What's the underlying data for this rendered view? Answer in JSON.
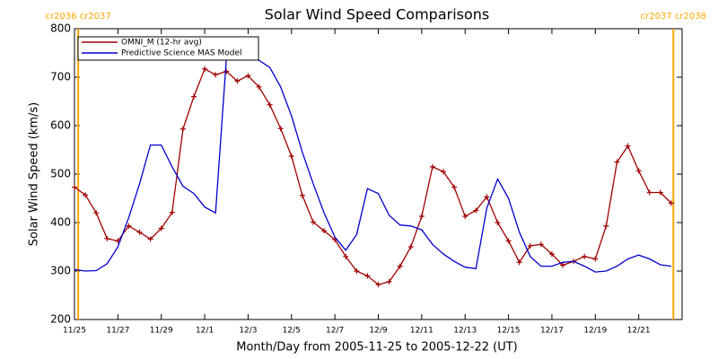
{
  "chart_data": {
    "type": "line",
    "title": "Solar Wind Speed Comparisons",
    "xlabel": "Month/Day from 2005-11-25 to 2005-12-22 (UT)",
    "ylabel": "Solar Wind Speed (km/s)",
    "x": [
      0,
      0.5,
      1,
      1.5,
      2,
      2.5,
      3,
      3.5,
      4,
      4.5,
      5,
      5.5,
      6,
      6.5,
      7,
      7.5,
      8,
      8.5,
      9,
      9.5,
      10,
      10.5,
      11,
      11.5,
      12,
      12.5,
      13,
      13.5,
      14,
      14.5,
      15,
      15.5,
      16,
      16.5,
      17,
      17.5,
      18,
      18.5,
      19,
      19.5,
      20,
      20.5,
      21,
      21.5,
      22,
      22.5,
      23,
      23.5,
      24,
      24.5,
      25,
      25.5,
      26,
      26.5,
      27,
      27.5
    ],
    "series": [
      {
        "name": "OMNI_M (12-hr avg)",
        "color": "#a00000",
        "marker": "+",
        "values": [
          473,
          457,
          420,
          367,
          362,
          393,
          380,
          366,
          388,
          421,
          593,
          660,
          717,
          705,
          712,
          692,
          703,
          680,
          643,
          594,
          537,
          456,
          401,
          383,
          365,
          330,
          300,
          290,
          272,
          278,
          310,
          350,
          413,
          515,
          505,
          473,
          413,
          425,
          453,
          400,
          362,
          318,
          352,
          355,
          335,
          312,
          320,
          330,
          325,
          393,
          525,
          558,
          507,
          462,
          462,
          440
        ]
      },
      {
        "name": "Predictive Science MAS Model",
        "color": "#0000cc",
        "values": [
          303,
          300,
          301,
          315,
          350,
          410,
          480,
          560,
          560,
          515,
          475,
          460,
          432,
          420,
          740,
          742,
          740,
          735,
          720,
          680,
          620,
          545,
          480,
          420,
          370,
          343,
          375,
          470,
          460,
          415,
          395,
          393,
          385,
          355,
          335,
          320,
          308,
          305,
          430,
          490,
          450,
          380,
          330,
          310,
          310,
          318,
          320,
          310,
          298,
          300,
          310,
          325,
          333,
          325,
          313,
          310
        ]
      }
    ],
    "xlim": [
      0,
      28
    ],
    "xticks": [
      {
        "value": 0,
        "label": "11/25"
      },
      {
        "value": 2,
        "label": "11/27"
      },
      {
        "value": 4,
        "label": "11/29"
      },
      {
        "value": 6,
        "label": "12/1"
      },
      {
        "value": 8,
        "label": "12/3"
      },
      {
        "value": 10,
        "label": "12/5"
      },
      {
        "value": 12,
        "label": "12/7"
      },
      {
        "value": 14,
        "label": "12/9"
      },
      {
        "value": 16,
        "label": "12/11"
      },
      {
        "value": 18,
        "label": "12/13"
      },
      {
        "value": 20,
        "label": "12/15"
      },
      {
        "value": 22,
        "label": "12/17"
      },
      {
        "value": 24,
        "label": "12/19"
      },
      {
        "value": 26,
        "label": "12/21"
      }
    ],
    "ylim": [
      200,
      800
    ],
    "yticks": [
      200,
      300,
      400,
      500,
      600,
      700,
      800
    ],
    "legend": "upper left",
    "annotations": [
      {
        "text": "cr2036 cr2037",
        "x": 0.17,
        "color": "#ffa500"
      },
      {
        "text": "cr2037 cr2038",
        "x": 27.6,
        "color": "#ffa500"
      }
    ]
  }
}
